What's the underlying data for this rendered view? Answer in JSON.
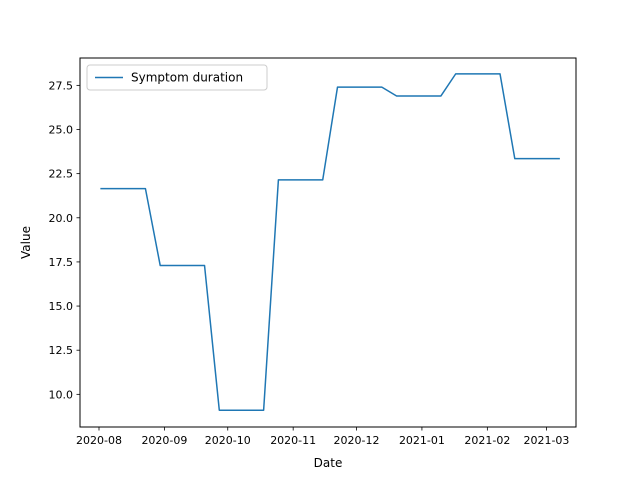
{
  "chart_data": {
    "type": "line",
    "title": "",
    "xlabel": "Date",
    "ylabel": "Value",
    "x_tick_labels": [
      "2020-08",
      "2020-09",
      "2020-10",
      "2020-11",
      "2020-12",
      "2021-01",
      "2021-02",
      "2021-03"
    ],
    "x_tick_dates": [
      "2020-08-01",
      "2020-09-01",
      "2020-10-01",
      "2020-11-01",
      "2020-12-01",
      "2021-01-01",
      "2021-02-01",
      "2021-03-01"
    ],
    "xlim": [
      "2020-07-23",
      "2021-03-15"
    ],
    "y_tick_labels": [
      "10.0",
      "12.5",
      "15.0",
      "17.5",
      "20.0",
      "22.5",
      "25.0",
      "27.5"
    ],
    "y_ticks": [
      10.0,
      12.5,
      15.0,
      17.5,
      20.0,
      22.5,
      25.0,
      27.5
    ],
    "ylim": [
      8.15,
      29.05
    ],
    "grid": false,
    "legend_position": "upper-left",
    "series": [
      {
        "name": "Symptom duration",
        "color": "#1f77b4",
        "x": [
          "2020-08-02",
          "2020-08-23",
          "2020-08-30",
          "2020-09-20",
          "2020-09-27",
          "2020-10-18",
          "2020-10-25",
          "2020-11-15",
          "2020-11-22",
          "2020-12-13",
          "2020-12-20",
          "2021-01-10",
          "2021-01-17",
          "2021-02-07",
          "2021-02-14",
          "2021-03-07"
        ],
        "values": [
          21.65,
          21.65,
          17.3,
          17.3,
          9.1,
          9.1,
          22.15,
          22.15,
          27.4,
          27.4,
          26.9,
          26.9,
          28.15,
          28.15,
          23.35,
          23.35
        ]
      }
    ]
  }
}
